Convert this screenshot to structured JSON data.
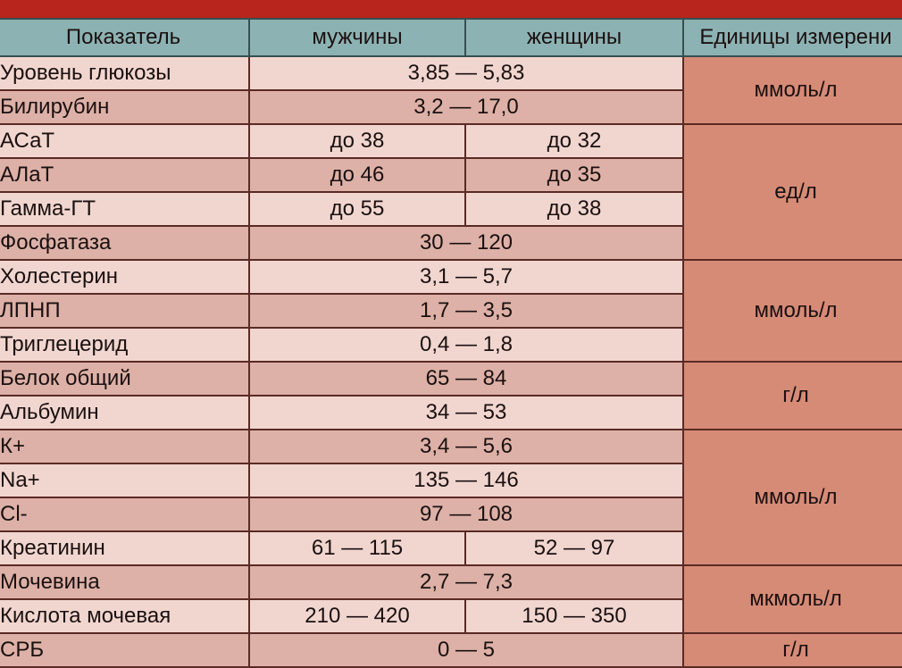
{
  "table": {
    "header": [
      "Показатель",
      "мужчины",
      "женщины",
      "Единицы измерени"
    ],
    "rows": [
      {
        "name": "Уровень глюкозы",
        "value": "3,85 — 5,83"
      },
      {
        "name": "Билирубин",
        "value": "3,2 — 17,0"
      },
      {
        "name": "АСаТ",
        "men": "до 38",
        "women": "до 32"
      },
      {
        "name": "АЛаТ",
        "men": "до 46",
        "women": "до 35"
      },
      {
        "name": "Гамма-ГТ",
        "men": "до 55",
        "women": "до 38"
      },
      {
        "name": "Фосфатаза",
        "value": "30 — 120"
      },
      {
        "name": "Холестерин",
        "value": "3,1 — 5,7"
      },
      {
        "name": "ЛПНП",
        "value": "1,7 — 3,5"
      },
      {
        "name": "Триглецерид",
        "value": "0,4 — 1,8"
      },
      {
        "name": "Белок общий",
        "value": "65 — 84"
      },
      {
        "name": "Альбумин",
        "value": "34 — 53"
      },
      {
        "name": "К+",
        "value": "3,4 — 5,6"
      },
      {
        "name": "Na+",
        "value": "135 — 146"
      },
      {
        "name": "Cl-",
        "value": "97 — 108"
      },
      {
        "name": "Креатинин",
        "men": "61 — 115",
        "women": "52 — 97"
      },
      {
        "name": "Мочевина",
        "value": "2,7 — 7,3"
      },
      {
        "name": "Кислота мочевая",
        "men": "210 — 420",
        "women": "150 — 350"
      },
      {
        "name": "СРБ",
        "value": "0 — 5"
      }
    ],
    "units": [
      {
        "label": "ммоль/л",
        "span": 2
      },
      {
        "label": "ед/л",
        "span": 4
      },
      {
        "label": "ммоль/л",
        "span": 3
      },
      {
        "label": "г/л",
        "span": 2
      },
      {
        "label": "ммоль/л",
        "span": 4
      },
      {
        "label": "мкмоль/л",
        "span": 2
      },
      {
        "label": "г/л",
        "span": 1
      }
    ]
  }
}
